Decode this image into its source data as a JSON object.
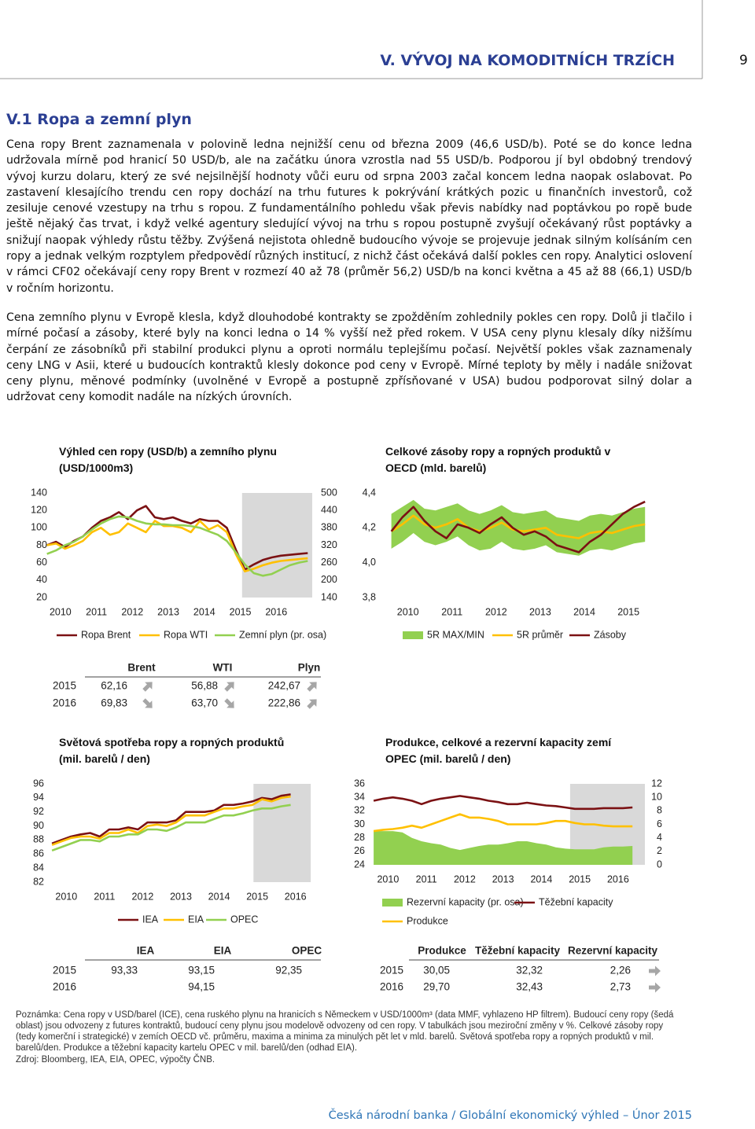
{
  "header": {
    "section_title": "V. VÝVOJ NA KOMODITNÍCH TRZÍCH",
    "page": "9"
  },
  "section": "V.1 Ropa a zemní plyn",
  "paragraphs": [
    "Cena ropy Brent zaznamenala v polovině ledna nejnižší cenu od března 2009 (46,6 USD/b). Poté se do konce ledna udržovala mírně pod hranicí 50 USD/b, ale na začátku února vzrostla nad 55 USD/b. Podporou jí byl obdobný trendový vývoj kurzu dolaru, který ze své nejsilnější hodnoty vůči euru od srpna 2003 začal koncem ledna naopak oslabovat. Po zastavení klesajícího trendu cen ropy dochází na trhu futures k pokrývání krátkých pozic u finančních investorů, což zesiluje cenové vzestupy na trhu s ropou. Z fundamentálního pohledu však převis nabídky nad poptávkou po ropě bude ještě nějaký čas trvat, i když velké agentury sledující vývoj na trhu s ropou postupně zvyšují očekávaný růst poptávky a snižují naopak výhledy růstu těžby. Zvýšená nejistota ohledně budoucího vývoje se projevuje jednak silným kolísáním cen ropy a jednak velkým rozptylem předpovědí různých institucí, z nichž část očekává další pokles cen ropy. Analytici oslovení v rámci CF02 očekávají ceny ropy Brent v rozmezí 40 až 78 (průměr 56,2) USD/b na konci května a 45 až 88 (66,1) USD/b v ročním horizontu.",
    "Cena zemního plynu v Evropě klesla, když dlouhodobé kontrakty se zpožděním zohlednily pokles cen ropy. Dolů ji tlačilo i mírné počasí a zásoby, které byly na konci ledna o 14 % vyšší než před rokem. V USA ceny plynu klesaly díky nižšímu čerpání ze zásobníků při stabilní produkci plynu a oproti normálu teplejšímu počasí. Největší pokles však zaznamenaly ceny LNG v Asii, které u budoucích kontraktů klesly dokonce pod ceny v Evropě. Mírné teploty by měly i nadále snižovat ceny plynu, měnové podmínky (uvolněné v Evropě a postupně zpřísňované v USA) budou podporovat silný dolar a udržovat ceny komodit nadále na nízkých úrovních."
  ],
  "chart_data": [
    {
      "type": "line",
      "title": "Výhled cen ropy (USD/b) a zemního plynu (USD/1000m3)",
      "x": [
        2010.125,
        2010.375,
        2010.625,
        2010.875,
        2011.125,
        2011.375,
        2011.625,
        2011.875,
        2012.125,
        2012.375,
        2012.625,
        2012.875,
        2013.125,
        2013.375,
        2013.625,
        2013.875,
        2014.125,
        2014.375,
        2014.625,
        2014.875,
        2015.125,
        2015.375,
        2015.625,
        2015.875,
        2016.125,
        2016.375,
        2016.625,
        2016.875,
        2017.125,
        2017.375
      ],
      "xlim": [
        2010,
        2017.5
      ],
      "xticks": [
        2010,
        2011,
        2012,
        2013,
        2014,
        2015,
        2016
      ],
      "ylim": [
        20,
        140
      ],
      "yticks": [
        20,
        40,
        60,
        80,
        100,
        120,
        140
      ],
      "y2lim": [
        140,
        500
      ],
      "y2ticks": [
        140,
        200,
        260,
        320,
        380,
        440,
        500
      ],
      "shade": [
        2015.55,
        2017.5
      ],
      "series": [
        {
          "name": "Ropa Brent",
          "color": "#7b1113",
          "values": [
            80,
            84,
            78,
            85,
            90,
            100,
            108,
            112,
            118,
            110,
            120,
            125,
            112,
            110,
            112,
            108,
            105,
            110,
            108,
            108,
            100,
            75,
            52,
            58,
            63,
            66,
            68,
            69,
            70,
            71
          ]
        },
        {
          "name": "Ropa WTI",
          "color": "#ffc000",
          "values": [
            80,
            82,
            76,
            80,
            85,
            95,
            100,
            92,
            95,
            105,
            100,
            95,
            108,
            102,
            102,
            100,
            95,
            108,
            98,
            103,
            95,
            70,
            50,
            53,
            57,
            60,
            62,
            63,
            64,
            65
          ]
        },
        {
          "name": "Zemní plyn (pr. osa)",
          "color": "#92d050",
          "axis": "y2",
          "values": [
            290,
            302,
            320,
            332,
            350,
            374,
            395,
            410,
            419,
            416,
            404,
            395,
            392,
            392,
            389,
            389,
            386,
            380,
            368,
            356,
            335,
            296,
            254,
            224,
            215,
            221,
            236,
            251,
            260,
            266
          ]
        }
      ]
    },
    {
      "type": "line",
      "title": "Celkové zásoby ropy a ropných produktů v OECD (mld. barelů)",
      "x": [
        2010.125,
        2010.375,
        2010.625,
        2010.875,
        2011.125,
        2011.375,
        2011.625,
        2011.875,
        2012.125,
        2012.375,
        2012.625,
        2012.875,
        2013.125,
        2013.375,
        2013.625,
        2013.875,
        2014.125,
        2014.375,
        2014.625,
        2014.875,
        2015.125,
        2015.375,
        2015.625,
        2015.875
      ],
      "xlim": [
        2009.9,
        2016.05
      ],
      "xticks": [
        2010,
        2011,
        2012,
        2013,
        2014,
        2015
      ],
      "ylim": [
        3.8,
        4.4
      ],
      "yticks": [
        {
          "value": 3.8,
          "label": "3,8"
        },
        {
          "value": 4.0,
          "label": "4,0"
        },
        {
          "value": 4.2,
          "label": "4,2"
        },
        {
          "value": 4.4,
          "label": "4,4"
        }
      ],
      "series": [
        {
          "name": "5R MAX/MIN",
          "color": "#92d050",
          "low": [
            4.08,
            4.12,
            4.17,
            4.12,
            4.1,
            4.12,
            4.15,
            4.1,
            4.07,
            4.08,
            4.12,
            4.08,
            4.07,
            4.08,
            4.1,
            4.06,
            4.05,
            4.04,
            4.07,
            4.08,
            4.07,
            4.09,
            4.11,
            4.12
          ],
          "high": [
            4.28,
            4.32,
            4.36,
            4.31,
            4.3,
            4.32,
            4.34,
            4.3,
            4.28,
            4.3,
            4.33,
            4.29,
            4.28,
            4.29,
            4.3,
            4.26,
            4.25,
            4.24,
            4.27,
            4.28,
            4.27,
            4.29,
            4.31,
            4.32
          ]
        },
        {
          "name": "5R průměr",
          "color": "#ffc000",
          "values": [
            4.18,
            4.22,
            4.27,
            4.22,
            4.2,
            4.22,
            4.25,
            4.2,
            4.18,
            4.2,
            4.23,
            4.19,
            4.18,
            4.19,
            4.2,
            4.16,
            4.15,
            4.14,
            4.17,
            4.18,
            4.17,
            4.19,
            4.21,
            4.22
          ]
        },
        {
          "name": "Zásoby",
          "color": "#7b1113",
          "values": [
            4.18,
            4.26,
            4.32,
            4.24,
            4.18,
            4.14,
            4.22,
            4.2,
            4.17,
            4.22,
            4.26,
            4.2,
            4.16,
            4.18,
            4.15,
            4.1,
            4.08,
            4.06,
            4.12,
            4.16,
            4.22,
            4.28,
            4.32,
            4.35
          ]
        }
      ]
    },
    {
      "type": "line",
      "title": "Světová spotřeba ropy a ropných produktů (mil. barelů / den)",
      "x": [
        2010.125,
        2010.375,
        2010.625,
        2010.875,
        2011.125,
        2011.375,
        2011.625,
        2011.875,
        2012.125,
        2012.375,
        2012.625,
        2012.875,
        2013.125,
        2013.375,
        2013.625,
        2013.875,
        2014.125,
        2014.375,
        2014.625,
        2014.875,
        2015.125,
        2015.375,
        2015.625,
        2015.875,
        2016.125,
        2016.375
      ],
      "xlim": [
        2010,
        2017
      ],
      "xticks": [
        2010,
        2011,
        2012,
        2013,
        2014,
        2015,
        2016
      ],
      "ylim": [
        82,
        96
      ],
      "yticks": [
        82,
        84,
        86,
        88,
        90,
        92,
        94,
        96
      ],
      "shade": [
        2015.4,
        2016.9
      ],
      "series": [
        {
          "name": "IEA",
          "color": "#7b1113",
          "values": [
            87.5,
            88,
            88.5,
            88.8,
            89,
            88.5,
            89.5,
            89.5,
            89.8,
            89.5,
            90.5,
            90.5,
            90.5,
            90.8,
            92,
            92,
            92,
            92.2,
            93,
            93,
            93.2,
            93.5,
            94,
            93.8,
            94.3,
            94.5
          ]
        },
        {
          "name": "EIA",
          "color": "#ffc000",
          "values": [
            87.3,
            87.8,
            88.3,
            88.5,
            88.5,
            88.2,
            89,
            89,
            89.5,
            89,
            90,
            90.2,
            90,
            90.5,
            91.5,
            91.5,
            91.5,
            92,
            92.5,
            92.5,
            92.8,
            93,
            93.8,
            93.5,
            94,
            94.2
          ]
        },
        {
          "name": "OPEC",
          "color": "#92d050",
          "values": [
            86.5,
            87,
            87.5,
            88,
            88,
            87.8,
            88.5,
            88.5,
            88.8,
            88.8,
            89.5,
            89.5,
            89.3,
            89.8,
            90.5,
            90.5,
            90.5,
            91,
            91.5,
            91.5,
            91.8,
            92.2,
            92.5,
            92.5,
            92.8,
            93
          ]
        }
      ]
    },
    {
      "type": "line",
      "title": "Produkce, celkové a rezervní kapacity zemí OPEC (mil. barelů / den)",
      "x": [
        2010.125,
        2010.375,
        2010.625,
        2010.875,
        2011.125,
        2011.375,
        2011.625,
        2011.875,
        2012.125,
        2012.375,
        2012.625,
        2012.875,
        2013.125,
        2013.375,
        2013.625,
        2013.875,
        2014.125,
        2014.375,
        2014.625,
        2014.875,
        2015.125,
        2015.375,
        2015.625,
        2015.875,
        2016.125,
        2016.375,
        2016.625,
        2016.875
      ],
      "xlim": [
        2010,
        2017.2
      ],
      "xticks": [
        2010,
        2011,
        2012,
        2013,
        2014,
        2015,
        2016
      ],
      "ylim": [
        24,
        36
      ],
      "yticks": [
        24,
        26,
        28,
        30,
        32,
        34,
        36
      ],
      "y2lim": [
        0,
        12
      ],
      "y2ticks": [
        0,
        2,
        4,
        6,
        8,
        10,
        12
      ],
      "shade": [
        2015.25,
        2017.2
      ],
      "series": [
        {
          "name": "Rezervní kapacity (pr. osa)",
          "color": "#92d050",
          "axis": "y2",
          "style": "area",
          "values": [
            5,
            5,
            5,
            4.8,
            4,
            3.5,
            3.2,
            3,
            2.5,
            2.2,
            2.5,
            2.8,
            3,
            3,
            3.2,
            3.5,
            3.5,
            3.2,
            3,
            2.6,
            2.4,
            2.3,
            2.3,
            2.3,
            2.6,
            2.7,
            2.7,
            2.8
          ]
        },
        {
          "name": "Těžební kapacity",
          "color": "#7b1113",
          "values": [
            33.5,
            33.8,
            34,
            33.8,
            33.5,
            33,
            33.5,
            33.8,
            34,
            34.2,
            34,
            33.8,
            33.5,
            33.3,
            33,
            33,
            33.2,
            33,
            32.8,
            32.7,
            32.5,
            32.3,
            32.3,
            32.3,
            32.4,
            32.4,
            32.4,
            32.5
          ]
        },
        {
          "name": "Produkce",
          "color": "#ffc000",
          "values": [
            29,
            29.2,
            29.3,
            29.5,
            29.8,
            29.5,
            30,
            30.5,
            31,
            31.5,
            31,
            31,
            30.8,
            30.5,
            30,
            30,
            30,
            30,
            30.2,
            30.5,
            30.5,
            30.2,
            30,
            30,
            29.8,
            29.7,
            29.7,
            29.7
          ]
        }
      ]
    }
  ],
  "tables": [
    {
      "columns": [
        "Brent",
        "WTI",
        "Plyn"
      ],
      "rows": [
        {
          "label": "2015",
          "cells": [
            "62,16",
            "56,88",
            "242,67"
          ]
        },
        {
          "label": "2016",
          "cells": [
            "69,83",
            "63,70",
            "222,86"
          ]
        }
      ]
    },
    {
      "columns": [
        "IEA",
        "EIA",
        "OPEC"
      ],
      "rows": [
        {
          "label": "2015",
          "cells": [
            "93,33",
            "93,15",
            "92,35"
          ]
        },
        {
          "label": "2016",
          "cells": [
            null,
            "94,15",
            null
          ]
        }
      ]
    },
    {
      "columns": [
        "Produkce",
        "Těžební kapacity",
        "Rezervní kapacity"
      ],
      "rows": [
        {
          "label": "2015",
          "cells": [
            "30,05",
            "32,32",
            "2,26"
          ]
        },
        {
          "label": "2016",
          "cells": [
            "29,70",
            "32,43",
            "2,73"
          ]
        }
      ]
    }
  ],
  "note": "Poznámka: Cena ropy v USD/barel (ICE), cena ruského plynu na hranicích s Německem v USD/1000m³ (data MMF, vyhlazeno HP filtrem). Budoucí ceny ropy (šedá oblast) jsou odvozeny z futures kontraktů, budoucí ceny plynu jsou modelově odvozeny od cen ropy. V tabulkách jsou meziroční změny v %. Celkové zásoby ropy (tedy komerční i strategické) v zemích OECD vč. průměru, maxima a minima za minulých pět let v mld. barelů. Světová spotřeba ropy a ropných produktů v mil. barelů/den. Produkce a těžební kapacity kartelu OPEC v mil. barelů/den (odhad EIA).",
  "source": "Zdroj: Bloomberg, IEA, EIA, OPEC, výpočty ČNB.",
  "footer": "Česká národní banka / Globální ekonomický výhled – Únor 2015"
}
